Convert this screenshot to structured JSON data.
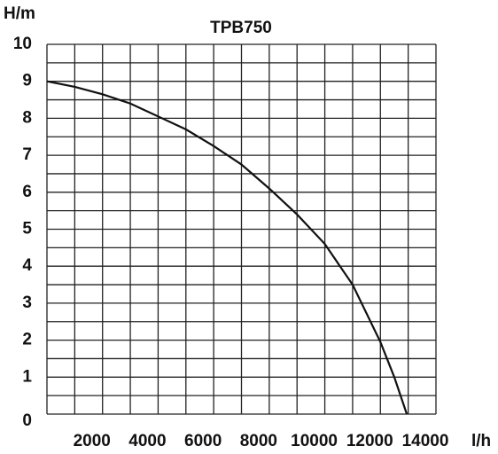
{
  "chart_data": {
    "type": "line",
    "title": "TPB750",
    "ylabel": "H/m",
    "xlabel": "l/h",
    "x": [
      0,
      1000,
      2000,
      3000,
      4000,
      5000,
      6000,
      7000,
      8000,
      9000,
      10000,
      11000,
      12000,
      12500,
      12950
    ],
    "series": [
      {
        "name": "TPB750",
        "color": "#111111",
        "values": [
          9,
          8.85,
          8.65,
          8.4,
          8.05,
          7.7,
          7.25,
          6.75,
          6.1,
          5.4,
          4.6,
          3.5,
          1.95,
          1.0,
          0
        ]
      }
    ],
    "xlim": [
      0,
      14000
    ],
    "ylim": [
      0,
      10
    ],
    "xticks": [
      2000,
      4000,
      6000,
      8000,
      10000,
      12000,
      14000
    ],
    "yticks": [
      0,
      1,
      2,
      3,
      4,
      5,
      6,
      7,
      8,
      9,
      10
    ],
    "xgrid": [
      0,
      1000,
      2000,
      3000,
      4000,
      5000,
      6000,
      7000,
      8000,
      9000,
      10000,
      11000,
      12000,
      13000,
      14000
    ],
    "ygrid": [
      0,
      0.5,
      1,
      1.5,
      2,
      2.5,
      3,
      3.5,
      4,
      4.5,
      5,
      5.5,
      6,
      6.5,
      7,
      7.5,
      8,
      8.5,
      9,
      9.5,
      10
    ],
    "grid": true
  }
}
